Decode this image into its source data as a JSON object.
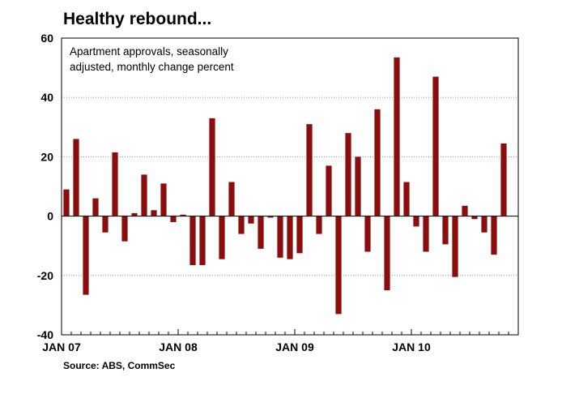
{
  "title": "Healthy rebound...",
  "subtitle_lines": [
    "Apartment approvals, seasonally",
    "adjusted, monthly change percent"
  ],
  "source": "Source: ABS, CommSec",
  "colors": {
    "bar": "#8b0e0e",
    "grid": "#9a9a9a",
    "frame": "#000000"
  },
  "chart_data": {
    "type": "bar",
    "title": "Healthy rebound...",
    "subtitle": "Apartment approvals, seasonally adjusted, monthly change percent",
    "xlabel": "",
    "ylabel": "",
    "ylim": [
      -40,
      60
    ],
    "yticks": [
      -40,
      -20,
      0,
      20,
      40,
      60
    ],
    "grid": true,
    "x_tick_labels": [
      "JAN 07",
      "JAN 08",
      "JAN 09",
      "JAN 10"
    ],
    "categories": [
      "Jan 07",
      "Feb 07",
      "Mar 07",
      "Apr 07",
      "May 07",
      "Jun 07",
      "Jul 07",
      "Aug 07",
      "Sep 07",
      "Oct 07",
      "Nov 07",
      "Dec 07",
      "Jan 08",
      "Feb 08",
      "Mar 08",
      "Apr 08",
      "May 08",
      "Jun 08",
      "Jul 08",
      "Aug 08",
      "Sep 08",
      "Oct 08",
      "Nov 08",
      "Dec 08",
      "Jan 09",
      "Feb 09",
      "Mar 09",
      "Apr 09",
      "May 09",
      "Jun 09",
      "Jul 09",
      "Aug 09",
      "Sep 09",
      "Oct 09",
      "Nov 09",
      "Dec 09",
      "Jan 10",
      "Feb 10",
      "Mar 10",
      "Apr 10",
      "May 10",
      "Jun 10",
      "Jul 10",
      "Aug 10",
      "Sep 10",
      "Oct 10",
      "Nov 10"
    ],
    "values": [
      9,
      26,
      -26.5,
      6,
      -5.5,
      21.5,
      -8.5,
      1,
      14,
      2,
      11,
      -2,
      0.5,
      -16.5,
      -16.5,
      33,
      -14.5,
      11.5,
      -6,
      -2.5,
      -11,
      -0.5,
      -14,
      -14.5,
      -12.5,
      31,
      -6,
      17,
      -33,
      28,
      20,
      -12,
      36,
      -25,
      53.5,
      11.5,
      -3.5,
      -12,
      47,
      -9.5,
      -20.5,
      3.5,
      -1,
      -5.5,
      -13,
      24.5,
      0
    ]
  }
}
